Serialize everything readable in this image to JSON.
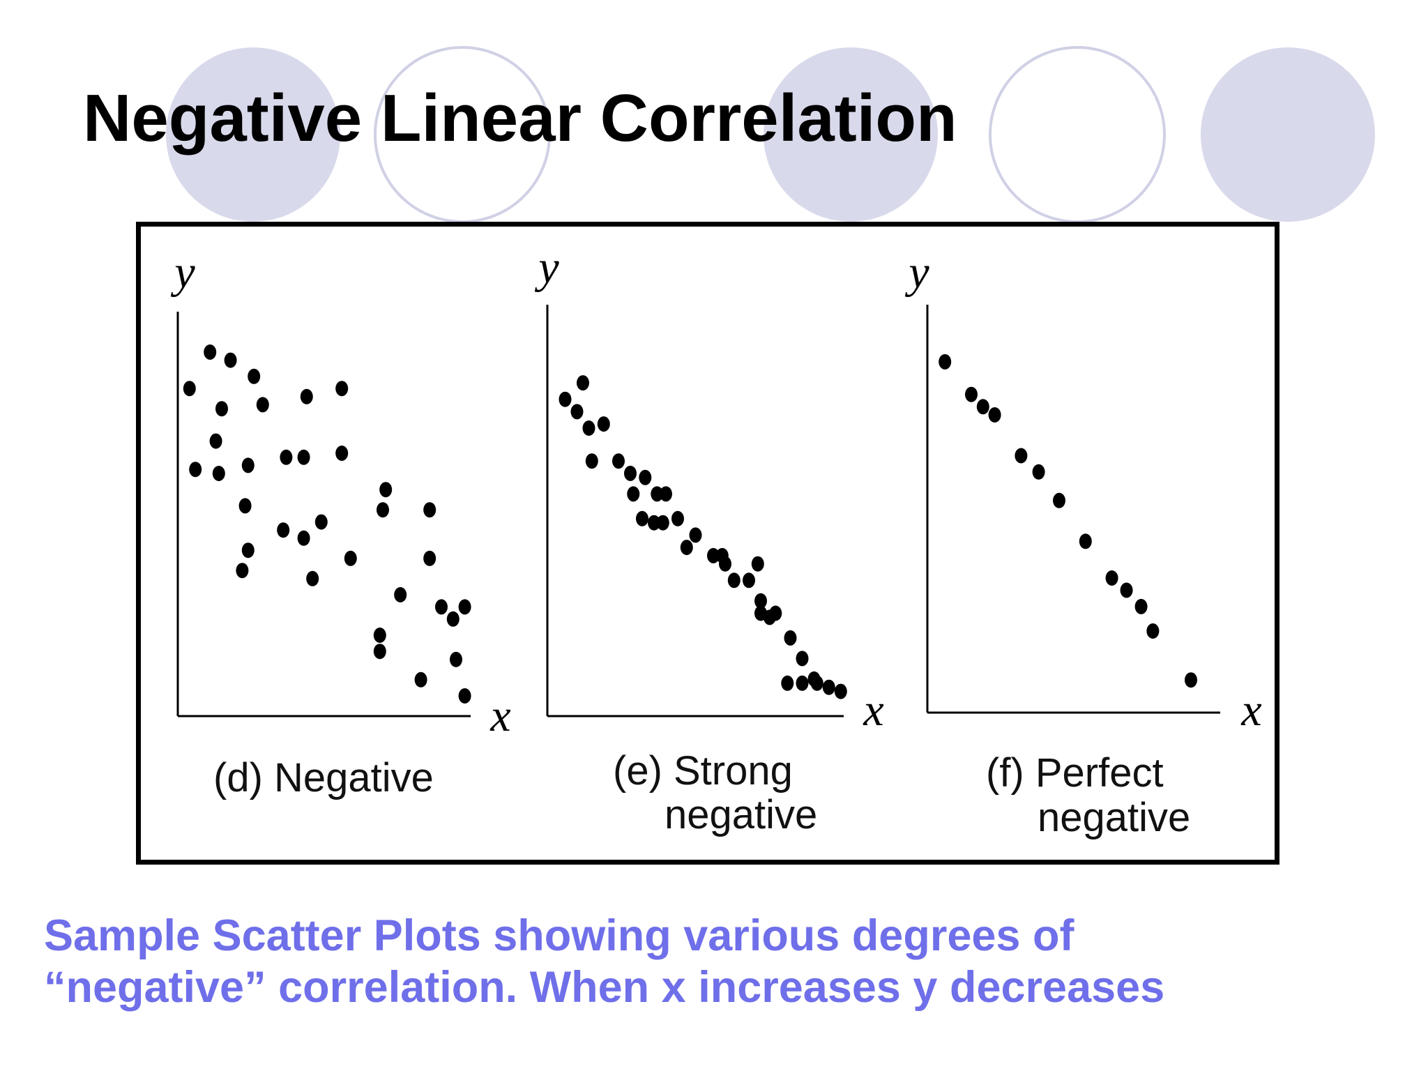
{
  "title": "Negative Linear Correlation",
  "footer": {
    "line1": "Sample Scatter Plots showing various degrees of",
    "line2": "“negative” correlation.  When x increases y decreases"
  },
  "colors": {
    "circle_fill": "#D9D9EC",
    "circle_outline": "#D0D0E6",
    "footer_text": "#6F6FEA",
    "points": "#000000"
  },
  "chart_data": [
    {
      "type": "scatter",
      "title": "",
      "caption": [
        "(d) Negative"
      ],
      "xlabel": "x",
      "ylabel": "y",
      "xlim": [
        0,
        10
      ],
      "ylim": [
        0,
        10
      ],
      "grid": false,
      "x": [
        0.4,
        1.1,
        1.8,
        1.5,
        2.6,
        2.9,
        1.3,
        0.6,
        1.4,
        2.3,
        2.4,
        3.7,
        4.4,
        5.6,
        5.6,
        3.6,
        2.2,
        2.4,
        4.6,
        4.3,
        4.9,
        5.9,
        4.3,
        7.0,
        7.1,
        6.9,
        8.6,
        8.6,
        7.6,
        9.0,
        9.4,
        9.8,
        9.5,
        8.3,
        9.8,
        6.9
      ],
      "y": [
        8.1,
        9.0,
        8.8,
        7.6,
        8.4,
        7.7,
        6.8,
        6.1,
        6.0,
        5.2,
        6.2,
        6.4,
        7.9,
        8.1,
        6.5,
        4.6,
        3.6,
        4.1,
        3.4,
        4.4,
        4.8,
        3.9,
        6.4,
        5.1,
        5.6,
        1.6,
        5.1,
        3.9,
        3.0,
        2.7,
        2.4,
        2.7,
        1.4,
        0.9,
        0.5,
        2.0
      ]
    },
    {
      "type": "scatter",
      "title": "",
      "caption": [
        "(e) Strong",
        "negative"
      ],
      "xlabel": "x",
      "ylabel": "y",
      "xlim": [
        0,
        10
      ],
      "ylim": [
        0,
        10
      ],
      "grid": false,
      "x": [
        0.6,
        1.0,
        1.2,
        1.4,
        1.9,
        1.5,
        2.4,
        2.8,
        3.3,
        2.9,
        3.7,
        4.0,
        3.2,
        3.6,
        3.9,
        4.4,
        4.7,
        5.0,
        5.6,
        5.9,
        6.3,
        6.0,
        6.8,
        7.2,
        7.1,
        7.5,
        7.2,
        7.7,
        8.2,
        8.6,
        9.0,
        8.1,
        8.6,
        9.1,
        9.5,
        9.9
      ],
      "y": [
        7.7,
        7.4,
        8.1,
        7.0,
        7.1,
        6.2,
        6.2,
        5.9,
        5.8,
        5.4,
        5.4,
        5.4,
        4.8,
        4.7,
        4.7,
        4.8,
        4.1,
        4.4,
        3.9,
        3.9,
        3.3,
        3.7,
        3.3,
        2.5,
        3.7,
        2.4,
        2.8,
        2.5,
        1.9,
        1.4,
        0.9,
        0.8,
        0.8,
        0.8,
        0.7,
        0.6
      ]
    },
    {
      "type": "scatter",
      "title": "",
      "caption": [
        "(f) Perfect",
        "negative"
      ],
      "xlabel": "x",
      "ylabel": "y",
      "xlim": [
        0,
        10
      ],
      "ylim": [
        0,
        10
      ],
      "grid": false,
      "x": [
        0.6,
        1.5,
        1.9,
        2.3,
        3.2,
        3.8,
        4.5,
        5.4,
        6.3,
        6.8,
        7.3,
        7.7,
        9.0
      ],
      "y": [
        8.6,
        7.8,
        7.5,
        7.3,
        6.3,
        5.9,
        5.2,
        4.2,
        3.3,
        3.0,
        2.6,
        2.0,
        0.8
      ]
    }
  ]
}
